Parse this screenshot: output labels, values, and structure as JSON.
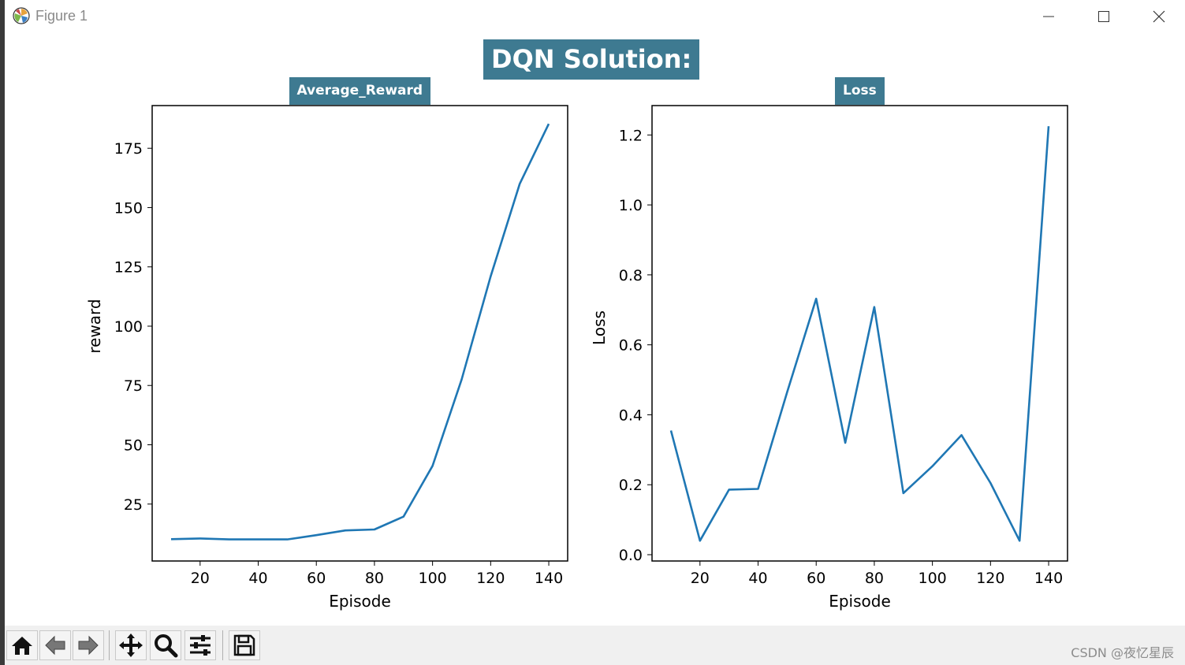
{
  "window": {
    "title": "Figure 1"
  },
  "figure": {
    "suptitle": "DQN Solution:"
  },
  "chart_data": [
    {
      "type": "line",
      "title": "Average_Reward",
      "xlabel": "Episode",
      "ylabel": "reward",
      "xlim": [
        3.5,
        146.5
      ],
      "ylim": [
        1,
        193
      ],
      "xticks": [
        20,
        40,
        60,
        80,
        100,
        120,
        140
      ],
      "yticks": [
        25,
        50,
        75,
        100,
        125,
        150,
        175
      ],
      "x": [
        10,
        20,
        30,
        40,
        50,
        60,
        70,
        80,
        90,
        100,
        110,
        120,
        130,
        140
      ],
      "series": [
        {
          "values": [
            10.2,
            10.5,
            10.1,
            10.1,
            10.1,
            11.9,
            13.9,
            14.3,
            19.7,
            41.1,
            77.5,
            121.0,
            160.0,
            185.3
          ]
        }
      ],
      "color": "#1f77b4"
    },
    {
      "type": "line",
      "title": "Loss",
      "xlabel": "Episode",
      "ylabel": "Loss",
      "xlim": [
        3.5,
        146.5
      ],
      "ylim": [
        -0.018,
        1.284
      ],
      "xticks": [
        20,
        40,
        60,
        80,
        100,
        120,
        140
      ],
      "yticks": [
        0.0,
        0.2,
        0.4,
        0.6,
        0.8,
        1.0,
        1.2
      ],
      "ytick_labels": [
        "0.0",
        "0.2",
        "0.4",
        "0.6",
        "0.8",
        "1.0",
        "1.2"
      ],
      "x": [
        10,
        20,
        30,
        40,
        50,
        60,
        70,
        80,
        90,
        100,
        110,
        120,
        130,
        140
      ],
      "series": [
        {
          "values": [
            0.355,
            0.04,
            0.186,
            0.188,
            0.465,
            0.732,
            0.32,
            0.708,
            0.176,
            0.253,
            0.342,
            0.205,
            0.04,
            1.225
          ]
        }
      ],
      "color": "#1f77b4"
    }
  ],
  "toolbar": {
    "buttons": [
      {
        "icon": "home-icon"
      },
      {
        "icon": "back-arrow-icon"
      },
      {
        "icon": "forward-arrow-icon"
      },
      {
        "icon": "pan-icon"
      },
      {
        "icon": "zoom-icon"
      },
      {
        "icon": "configure-subplots-icon"
      },
      {
        "icon": "save-icon"
      }
    ]
  },
  "watermark": "CSDN @夜忆星辰"
}
